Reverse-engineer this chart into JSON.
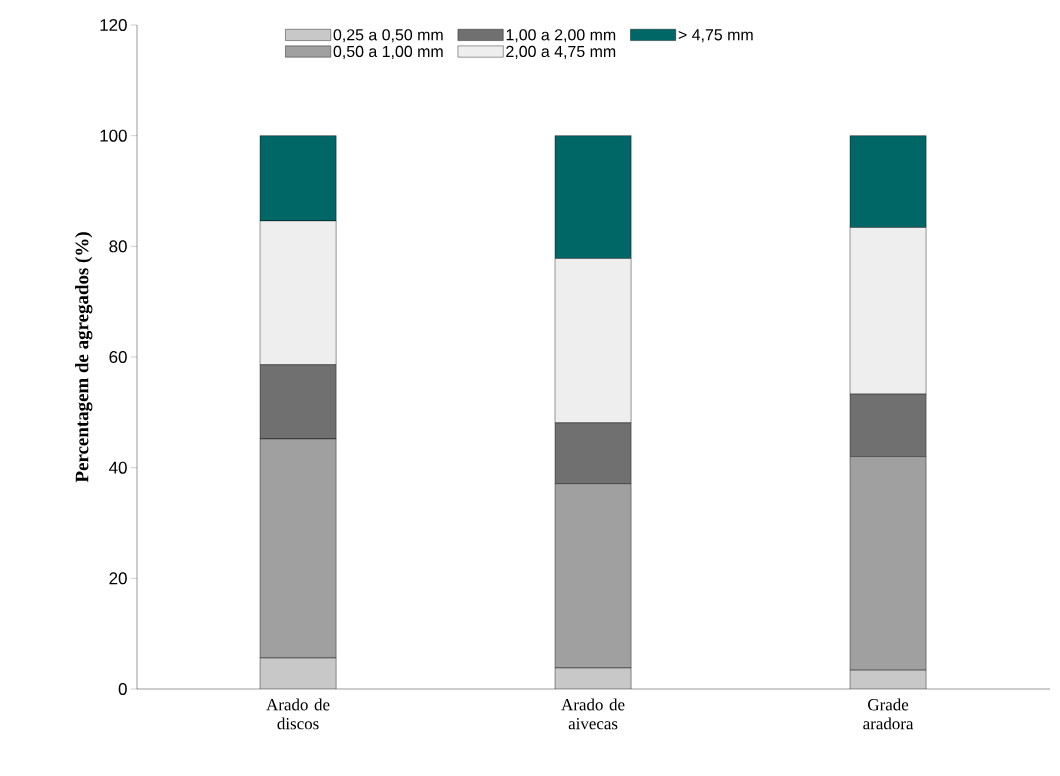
{
  "chart_data": {
    "type": "bar",
    "stacked": true,
    "ylabel": "Percentagem de agregados (%)",
    "categories": [
      "Arado de discos",
      "Arado de aivecas",
      "Grade aradora"
    ],
    "series": [
      {
        "name": "0,25 a 0,50 mm",
        "color": "#c8c8c8",
        "values": [
          5.6,
          3.8,
          3.4
        ]
      },
      {
        "name": "0,50 a 1,00 mm",
        "color": "#a0a0a0",
        "values": [
          39.6,
          33.3,
          38.6
        ]
      },
      {
        "name": "1,00 a 2,00 mm",
        "color": "#707070",
        "values": [
          13.4,
          11.0,
          11.3
        ]
      },
      {
        "name": "2,00 a 4,75 mm",
        "color": "#eeeeee",
        "values": [
          26.0,
          29.7,
          30.1
        ]
      },
      {
        "name": "> 4,75 mm",
        "color": "#006666",
        "values": [
          15.4,
          22.2,
          16.6
        ]
      }
    ],
    "ylim": [
      0,
      120
    ],
    "yticks": [
      0,
      20,
      40,
      60,
      80,
      100,
      120
    ],
    "grid": false,
    "legend": "top"
  }
}
